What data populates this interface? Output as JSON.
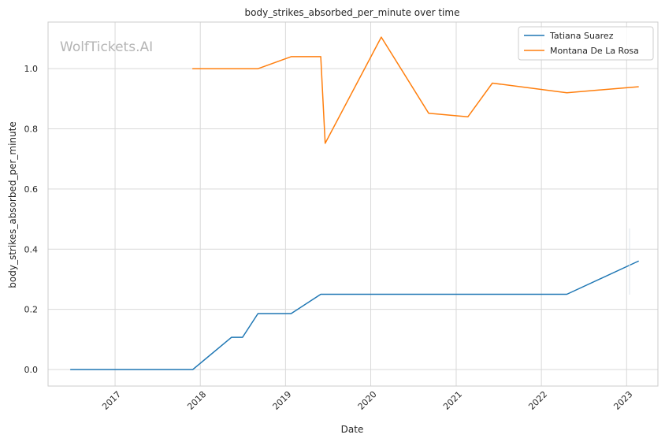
{
  "chart_data": {
    "type": "line",
    "title": "body_strikes_absorbed_per_minute over time",
    "xlabel": "Date",
    "ylabel": "body_strikes_absorbed_per_minute",
    "watermark": "WolfTickets.AI",
    "x_ticks": [
      "2017",
      "2018",
      "2019",
      "2020",
      "2021",
      "2022",
      "2023"
    ],
    "y_ticks": [
      "0.0",
      "0.2",
      "0.4",
      "0.6",
      "0.8",
      "1.0"
    ],
    "xlim": [
      "2016-03-20",
      "2023-05-15"
    ],
    "ylim": [
      -0.055,
      1.155
    ],
    "grid": true,
    "legend_position": "top-right",
    "series": [
      {
        "name": "Tatiana Suarez",
        "color": "#1f77b4",
        "x": [
          "2016-06-25",
          "2017-11-30",
          "2018-05-15",
          "2018-07-01",
          "2018-09-05",
          "2019-01-25",
          "2019-06-01",
          "2022-04-20",
          "2023-02-20"
        ],
        "y": [
          0.0,
          0.0,
          0.107,
          0.107,
          0.186,
          0.186,
          0.25,
          0.25,
          0.36
        ]
      },
      {
        "name": "Montana De La Rosa",
        "color": "#ff7f0e",
        "x": [
          "2017-11-30",
          "2018-09-05",
          "2019-01-25",
          "2019-06-01",
          "2019-06-20",
          "2020-02-15",
          "2020-09-05",
          "2021-02-20",
          "2021-06-05",
          "2022-04-20",
          "2023-02-20"
        ],
        "y": [
          1.0,
          1.0,
          1.04,
          1.04,
          0.752,
          1.105,
          0.852,
          0.84,
          0.952,
          0.92,
          0.94
        ]
      }
    ]
  }
}
